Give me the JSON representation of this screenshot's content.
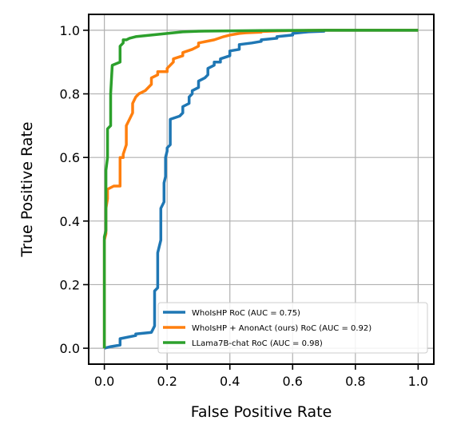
{
  "chart_data": {
    "type": "line",
    "title": "",
    "xlabel": "False Positive Rate",
    "ylabel": "True Positive Rate",
    "xlim": [
      -0.05,
      1.05
    ],
    "ylim": [
      -0.05,
      1.05
    ],
    "xticks": [
      "0.0",
      "0.2",
      "0.4",
      "0.6",
      "0.8",
      "1.0"
    ],
    "yticks": [
      "0.0",
      "0.2",
      "0.4",
      "0.6",
      "0.8",
      "1.0"
    ],
    "grid": true,
    "legend_position": "lower-right",
    "series": [
      {
        "name": "WhoIsHP RoC (AUC = 0.75)",
        "color": "#1f77b4",
        "x": [
          0.0,
          0.02,
          0.05,
          0.05,
          0.1,
          0.1,
          0.15,
          0.16,
          0.16,
          0.17,
          0.17,
          0.18,
          0.18,
          0.19,
          0.19,
          0.195,
          0.195,
          0.2,
          0.2,
          0.21,
          0.21,
          0.24,
          0.25,
          0.25,
          0.27,
          0.27,
          0.28,
          0.28,
          0.3,
          0.3,
          0.32,
          0.33,
          0.33,
          0.35,
          0.35,
          0.37,
          0.37,
          0.4,
          0.4,
          0.43,
          0.43,
          0.47,
          0.5,
          0.5,
          0.55,
          0.55,
          0.6,
          0.6,
          0.65,
          0.7,
          0.7,
          1.0
        ],
        "y": [
          0.0,
          0.005,
          0.01,
          0.03,
          0.04,
          0.045,
          0.05,
          0.07,
          0.18,
          0.19,
          0.3,
          0.34,
          0.44,
          0.46,
          0.52,
          0.54,
          0.6,
          0.62,
          0.63,
          0.64,
          0.72,
          0.73,
          0.74,
          0.76,
          0.77,
          0.79,
          0.8,
          0.81,
          0.82,
          0.84,
          0.85,
          0.86,
          0.88,
          0.89,
          0.9,
          0.9,
          0.91,
          0.92,
          0.935,
          0.94,
          0.955,
          0.96,
          0.965,
          0.97,
          0.975,
          0.98,
          0.985,
          0.99,
          0.995,
          0.997,
          1.0,
          1.0
        ]
      },
      {
        "name": "WhoIsHP + AnonAct (ours) RoC (AUC = 0.92)",
        "color": "#ff7f0e",
        "x": [
          0.0,
          0.0,
          0.005,
          0.005,
          0.01,
          0.01,
          0.03,
          0.05,
          0.05,
          0.06,
          0.06,
          0.07,
          0.07,
          0.08,
          0.09,
          0.09,
          0.1,
          0.11,
          0.11,
          0.13,
          0.14,
          0.15,
          0.15,
          0.17,
          0.17,
          0.2,
          0.2,
          0.21,
          0.22,
          0.22,
          0.25,
          0.25,
          0.28,
          0.3,
          0.3,
          0.35,
          0.38,
          0.4,
          0.43,
          0.45,
          0.5,
          0.5,
          0.55,
          0.6,
          0.7,
          1.0
        ],
        "y": [
          0.0,
          0.34,
          0.36,
          0.44,
          0.47,
          0.5,
          0.51,
          0.51,
          0.6,
          0.6,
          0.61,
          0.64,
          0.7,
          0.72,
          0.74,
          0.77,
          0.79,
          0.8,
          0.8,
          0.81,
          0.82,
          0.83,
          0.85,
          0.86,
          0.87,
          0.87,
          0.88,
          0.89,
          0.9,
          0.91,
          0.92,
          0.93,
          0.94,
          0.95,
          0.96,
          0.97,
          0.98,
          0.985,
          0.99,
          0.992,
          0.994,
          0.996,
          0.998,
          0.999,
          1.0,
          1.0
        ]
      },
      {
        "name": "LLama7B-chat RoC (AUC = 0.98)",
        "color": "#2ca02c",
        "x": [
          0.0,
          0.0,
          0.005,
          0.005,
          0.01,
          0.01,
          0.02,
          0.02,
          0.025,
          0.025,
          0.05,
          0.05,
          0.06,
          0.06,
          0.07,
          0.08,
          0.1,
          0.15,
          0.2,
          0.25,
          0.3,
          0.5,
          0.7,
          1.0
        ],
        "y": [
          0.0,
          0.35,
          0.37,
          0.56,
          0.6,
          0.69,
          0.7,
          0.8,
          0.89,
          0.89,
          0.9,
          0.95,
          0.96,
          0.97,
          0.97,
          0.975,
          0.98,
          0.985,
          0.99,
          0.995,
          0.997,
          0.999,
          1.0,
          1.0
        ]
      }
    ]
  }
}
